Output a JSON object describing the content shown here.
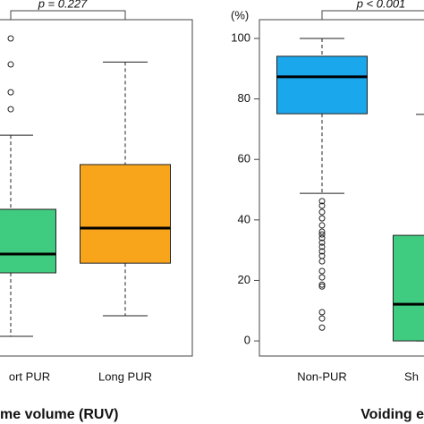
{
  "chart_data": [
    {
      "type": "box",
      "x_label": "me volume (RUV)",
      "annotation": "p = 0.227",
      "categories": [
        "ort PUR",
        "Long PUR"
      ],
      "colors": [
        "#40cc80",
        "#f9a51c"
      ],
      "ylim": [
        -5.0,
        106.2
      ],
      "boxes": [
        {
          "whisker_low": 1.5,
          "q1": 22.5,
          "median": 28.7,
          "q3": 43.5,
          "whisker_high": 68.0,
          "outliers": [
            100.0,
            91.4,
            82.2,
            76.6
          ]
        },
        {
          "whisker_low": 8.3,
          "q1": 25.7,
          "median": 37.3,
          "q3": 58.3,
          "whisker_high": 92.2,
          "outliers": []
        }
      ]
    },
    {
      "type": "box",
      "x_label": "Voiding e",
      "annotation": "p < 0.001",
      "y_unit": "(%)",
      "categories": [
        "Non-PUR",
        "Sh"
      ],
      "colors": [
        "#1aa7ec",
        "#40cc80"
      ],
      "ylim": [
        -5.0,
        106.2
      ],
      "yticks": [
        0,
        20,
        40,
        60,
        80,
        100
      ],
      "boxes": [
        {
          "whisker_low": 48.8,
          "q1": 75.1,
          "median": 87.3,
          "q3": 94.1,
          "whisker_high": 100.0,
          "outliers": [
            46.2,
            44.7,
            42.6,
            40.5,
            38.2,
            36.1,
            35.2,
            34.0,
            32.5,
            31.1,
            29.6,
            28.1,
            26.3,
            23.1,
            21.0,
            18.6,
            18.0,
            9.5,
            7.4,
            4.4
          ]
        },
        {
          "whisker_low": 0,
          "q1": 0,
          "median": 12.1,
          "q3": 34.9,
          "whisker_high": 74.9,
          "outliers": []
        }
      ]
    }
  ]
}
